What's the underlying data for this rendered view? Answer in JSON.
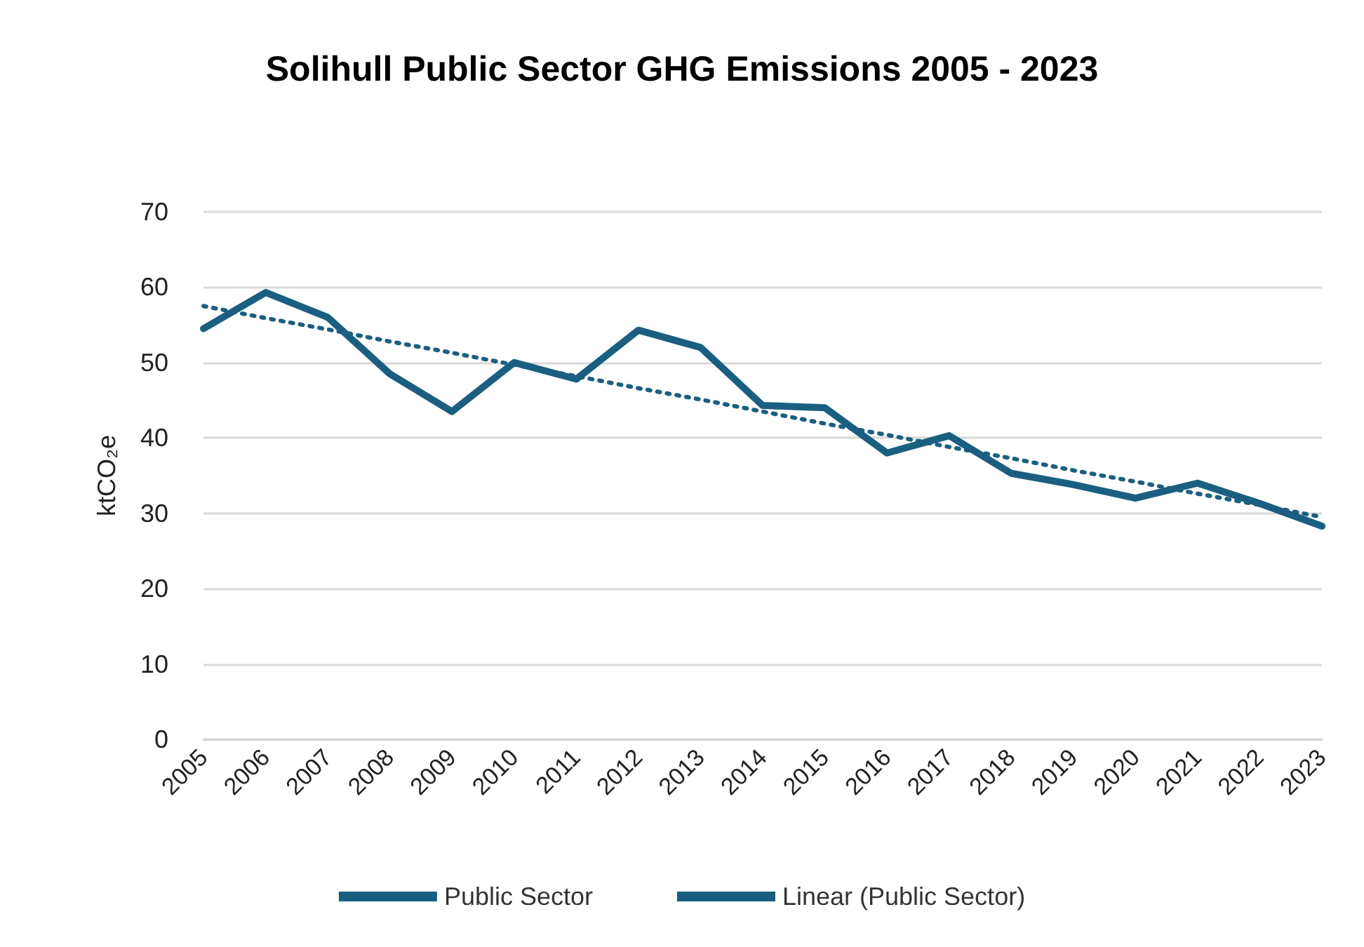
{
  "chart_data": {
    "type": "line",
    "title": "Solihull Public Sector GHG Emissions 2005 - 2023",
    "ylabel": "ktCO₂e",
    "categories": [
      "2005",
      "2006",
      "2007",
      "2008",
      "2009",
      "2010",
      "2011",
      "2012",
      "2013",
      "2014",
      "2015",
      "2016",
      "2017",
      "2018",
      "2019",
      "2020",
      "2021",
      "2022",
      "2023"
    ],
    "series": [
      {
        "name": "Public Sector",
        "color": "#1a5f80",
        "line_style": "solid",
        "values": [
          54.5,
          59.3,
          56,
          48.5,
          43.5,
          50,
          47.8,
          54.3,
          52,
          44.3,
          44,
          38,
          40.3,
          35.3,
          33.8,
          32,
          34,
          31.3,
          28.3
        ]
      },
      {
        "name": "Linear (Public Sector)",
        "color": "#1a5f80",
        "line_style": "dotted",
        "values": [
          57.5,
          55.9,
          54.4,
          52.8,
          51.3,
          49.7,
          48.2,
          46.6,
          45.1,
          43.5,
          41.9,
          40.4,
          38.8,
          37.3,
          35.7,
          34.2,
          32.6,
          31.1,
          29.5
        ]
      }
    ],
    "ylim": [
      0,
      70
    ],
    "yticks": [
      0,
      10,
      20,
      30,
      40,
      50,
      60,
      70
    ],
    "grid": "y",
    "legend": "bottom",
    "marker": "none"
  }
}
